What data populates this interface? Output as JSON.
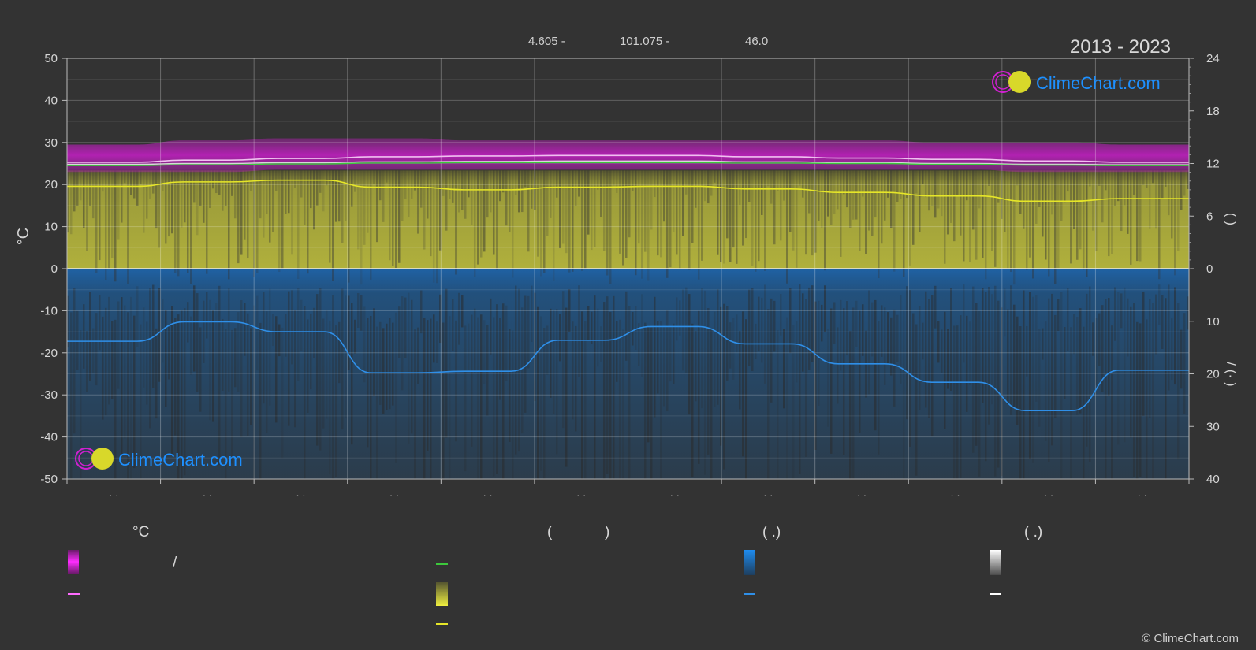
{
  "header": {
    "lat": "4.605 -",
    "lon": "101.075 -",
    "elev": "46.0",
    "period": "2013 - 2023"
  },
  "footer": {
    "copyright": "© ClimeChart.com"
  },
  "brand": {
    "name": "ClimeChart.com"
  },
  "colors": {
    "background": "#333333",
    "temp_band": "#c81ec8",
    "temp_mean": "#ff6cff",
    "temp_daily": "#e0e0e0",
    "dewpoint": "#3cc83c",
    "sunshine_band": "#b4b43c",
    "sunshine_line": "#e6e628",
    "rain_band": "#1e64aa",
    "rain_line": "#2f8fe8",
    "brand": "#1e90ff"
  },
  "legend": {
    "col1_header": "°C",
    "col1_slash": "/",
    "col2_header_open": "(",
    "col2_header_close": ")",
    "col3_header": "(   .)",
    "col4_header": "(   .)"
  },
  "chart_data": {
    "type": "area",
    "months": 12,
    "x_tick_labels": [
      "· ·",
      "· ·",
      "· ·",
      "· ·",
      "· ·",
      "· ·",
      "· ·",
      "· ·",
      "· ·",
      "· ·",
      "· ·",
      "· ·"
    ],
    "left_axis": {
      "label": "°C",
      "range": [
        -50,
        50
      ],
      "ticks": [
        50,
        40,
        30,
        20,
        10,
        0,
        -10,
        -20,
        -30,
        -40,
        -50
      ]
    },
    "right_axis_top": {
      "label": "(   )",
      "range": [
        0,
        24
      ],
      "ticks": [
        24,
        18,
        12,
        6,
        0
      ]
    },
    "right_axis_bottom": {
      "label": "/ (·  )",
      "range": [
        0,
        40
      ],
      "ticks": [
        10,
        20,
        30,
        40
      ]
    },
    "series": [
      {
        "key": "temp_max",
        "axis": "left",
        "values": [
          29.5,
          30.5,
          31,
          31,
          30.5,
          30.5,
          30.5,
          30.5,
          30.5,
          30,
          30,
          29.5
        ]
      },
      {
        "key": "temp_min",
        "axis": "left",
        "values": [
          23,
          23,
          23.5,
          23.5,
          23.5,
          23.5,
          23.5,
          23.5,
          23.5,
          23.5,
          23,
          23
        ]
      },
      {
        "key": "temp_mean",
        "axis": "left",
        "values": [
          25.3,
          25.8,
          26.2,
          26.6,
          26.8,
          26.9,
          26.9,
          26.6,
          26.3,
          26.0,
          25.6,
          25.3
        ]
      },
      {
        "key": "temp_daily",
        "axis": "left",
        "values": [
          24.8,
          25.0,
          25.2,
          25.4,
          25.5,
          25.6,
          25.6,
          25.4,
          25.2,
          25.0,
          24.8,
          24.7
        ]
      },
      {
        "key": "dewpoint",
        "axis": "left",
        "values": [
          24.5,
          24.7,
          24.9,
          25.1,
          25.2,
          25.2,
          25.2,
          25.1,
          25.0,
          24.8,
          24.6,
          24.5
        ]
      },
      {
        "key": "sunshine_hours",
        "axis": "right_top",
        "values": [
          9.4,
          9.9,
          10.1,
          9.3,
          9.0,
          9.3,
          9.4,
          9.1,
          8.7,
          8.3,
          7.7,
          8.0
        ]
      },
      {
        "key": "rain_mm",
        "axis": "right_bottom",
        "values": [
          13.8,
          10.1,
          12.0,
          19.8,
          19.5,
          13.6,
          11.0,
          14.3,
          18.1,
          21.6,
          27.0,
          19.3
        ]
      }
    ]
  }
}
